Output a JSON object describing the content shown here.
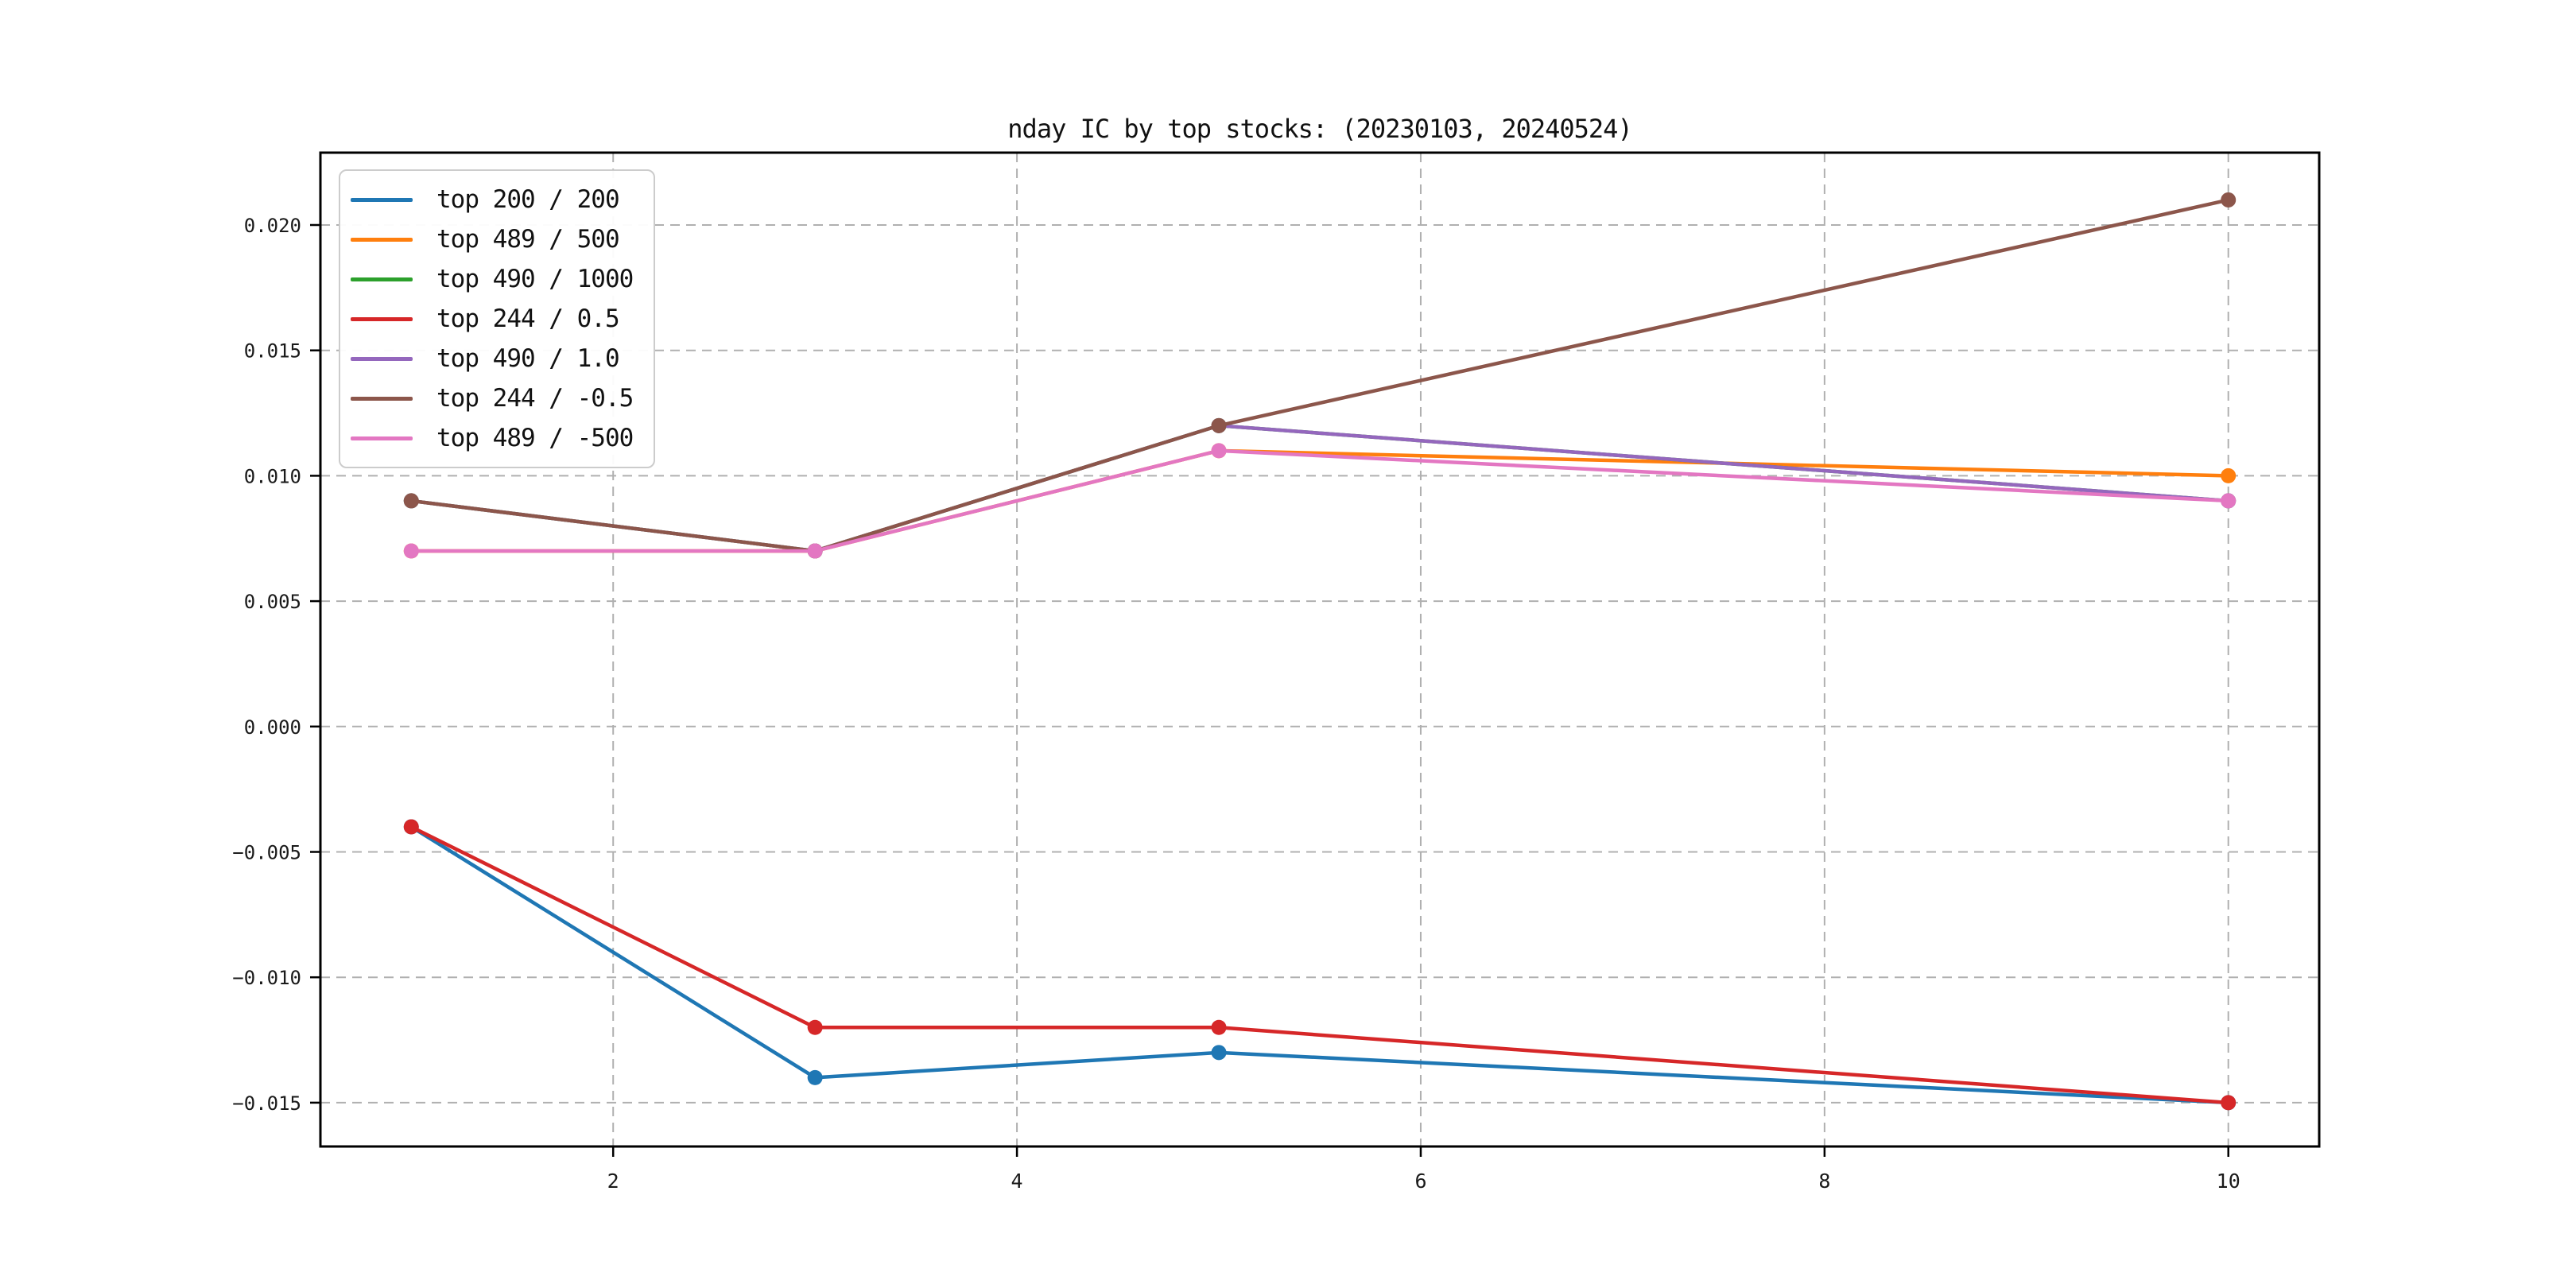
{
  "chart_data": {
    "type": "line",
    "title": "nday IC by top stocks: (20230103, 20240524)",
    "xlabel": "",
    "ylabel": "",
    "x": [
      1,
      3,
      5,
      10
    ],
    "series": [
      {
        "name": "top 200 / 200",
        "color": "#1f77b4",
        "values": [
          -0.004,
          -0.014,
          -0.013,
          -0.015
        ]
      },
      {
        "name": "top 489 / 500",
        "color": "#ff7f0e",
        "values": [
          0.007,
          0.007,
          0.011,
          0.01
        ]
      },
      {
        "name": "top 490 / 1000",
        "color": "#2ca02c",
        "values": [
          0.009,
          0.007,
          0.012,
          0.009
        ]
      },
      {
        "name": "top 244 / 0.5",
        "color": "#d62728",
        "values": [
          -0.004,
          -0.012,
          -0.012,
          -0.015
        ]
      },
      {
        "name": "top 490 / 1.0",
        "color": "#9467bd",
        "values": [
          0.009,
          0.007,
          0.012,
          0.009
        ]
      },
      {
        "name": "top 244 / -0.5",
        "color": "#8c564b",
        "values": [
          0.009,
          0.007,
          0.012,
          0.021
        ]
      },
      {
        "name": "top 489 / -500",
        "color": "#e377c2",
        "values": [
          0.007,
          0.007,
          0.011,
          0.009
        ]
      }
    ],
    "xticks": {
      "values": [
        2,
        4,
        6,
        8,
        10
      ],
      "labels": [
        "2",
        "4",
        "6",
        "8",
        "10"
      ]
    },
    "yticks": {
      "values": [
        0.02,
        0.015,
        0.01,
        0.005,
        0.0,
        -0.005,
        -0.01,
        -0.015
      ],
      "labels": [
        "0.020",
        "0.015",
        "0.010",
        "0.005",
        "0.000",
        "−0.005",
        "−0.010",
        "−0.015"
      ]
    },
    "xlim": [
      0.55,
      10.45
    ],
    "ylim": [
      -0.016747,
      0.022885
    ],
    "grid": true,
    "grid_style": "dashed",
    "grid_color": "#b0b0b0",
    "marker": "o",
    "legend_position": "upper left"
  }
}
